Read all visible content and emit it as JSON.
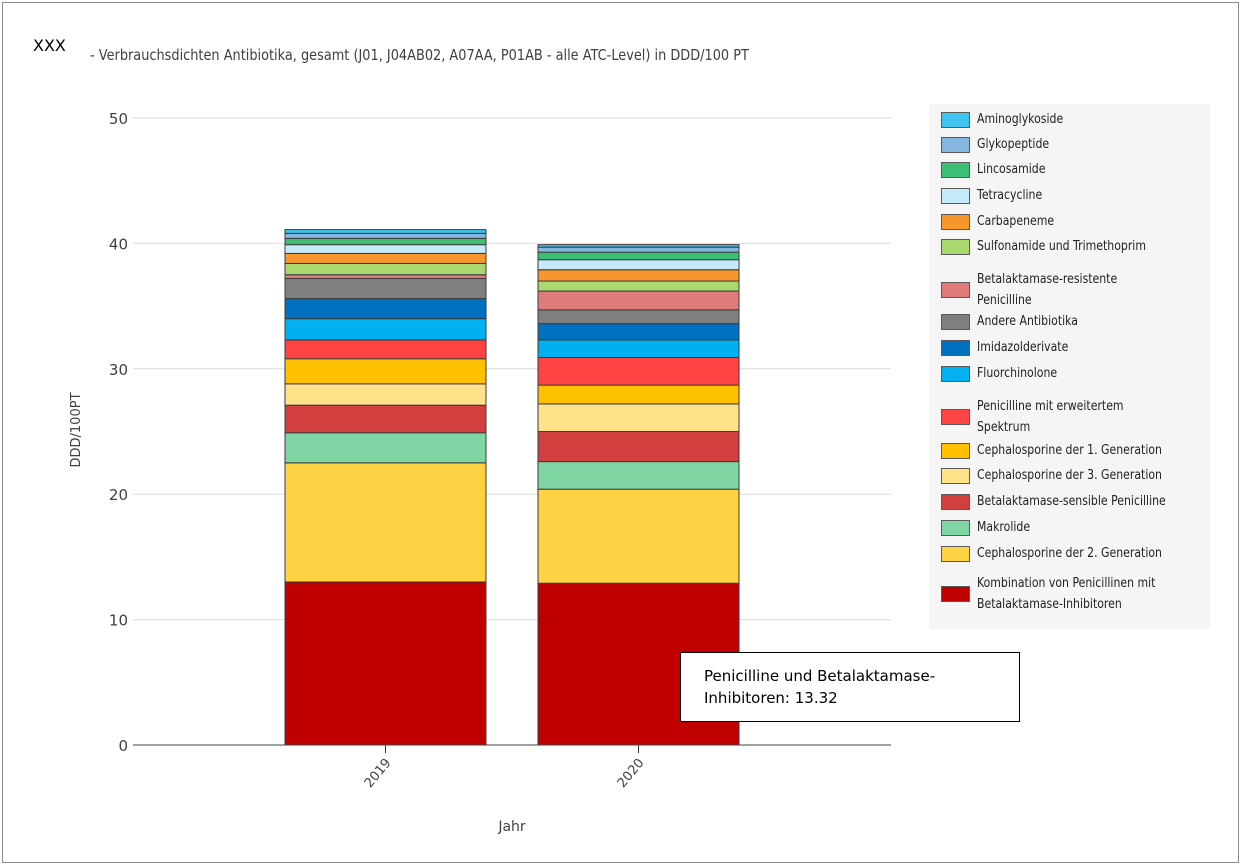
{
  "header": {
    "prefix": "XXX",
    "title": "- Verbrauchsdichten Antibiotika, gesamt (J01, J04AB02, A07AA, P01AB - alle ATC-Level) in DDD/100 PT"
  },
  "tooltip": {
    "text": "Penicilline und Betalaktamase-Inhibitoren: 13.32"
  },
  "chart_data": {
    "type": "bar",
    "stacked": true,
    "xlabel": "Jahr",
    "ylabel": "DDD/100PT",
    "ylim": [
      0,
      50
    ],
    "yticks": [
      "0",
      "10",
      "20",
      "30",
      "40",
      "50"
    ],
    "categories": [
      "2019",
      "2020"
    ],
    "grid": true,
    "legend_position": "right",
    "series": [
      {
        "name": "Kombination von Penicillinen mit Betalaktamase-Inhibitoren",
        "color": "#c00000",
        "values": [
          13.0,
          12.9
        ]
      },
      {
        "name": "Cephalosporine der 2. Generation",
        "color": "#ffd243",
        "values": [
          9.5,
          7.5
        ]
      },
      {
        "name": "Makrolide",
        "color": "#7fd6a2",
        "values": [
          2.4,
          2.2
        ]
      },
      {
        "name": "Betalaktamase-sensible Penicilline",
        "color": "#d13f3f",
        "values": [
          2.2,
          2.4
        ]
      },
      {
        "name": "Cephalosporine der 3. Generation",
        "color": "#ffe28a",
        "values": [
          1.7,
          2.2
        ]
      },
      {
        "name": "Cephalosporine der 1. Generation",
        "color": "#ffc000",
        "values": [
          2.0,
          1.5
        ]
      },
      {
        "name": "Penicilline mit erweitertem Spektrum",
        "color": "#ff4343",
        "values": [
          1.5,
          2.2
        ]
      },
      {
        "name": "Fluorchinolone",
        "color": "#00b0f0",
        "values": [
          1.7,
          1.4
        ]
      },
      {
        "name": "Imidazolderivate",
        "color": "#0070c0",
        "values": [
          1.6,
          1.3
        ]
      },
      {
        "name": "Andere Antibiotika",
        "color": "#7f7f7f",
        "values": [
          1.6,
          1.1
        ]
      },
      {
        "name": "Betalaktamase-resistente Penicilline",
        "color": "#e07b7b",
        "values": [
          0.3,
          1.5
        ]
      },
      {
        "name": "Sulfonamide und Trimethoprim",
        "color": "#a9d86e",
        "values": [
          0.9,
          0.8
        ]
      },
      {
        "name": "Carbapeneme",
        "color": "#f7962c",
        "values": [
          0.8,
          0.9
        ]
      },
      {
        "name": "Tetracycline",
        "color": "#c5eafa",
        "values": [
          0.7,
          0.8
        ]
      },
      {
        "name": "Lincosamide",
        "color": "#3cbf74",
        "values": [
          0.5,
          0.6
        ]
      },
      {
        "name": "Glykopeptide",
        "color": "#84b6e0",
        "values": [
          0.4,
          0.4
        ]
      },
      {
        "name": "Aminoglykoside",
        "color": "#3ec3ef",
        "values": [
          0.3,
          0.2
        ]
      }
    ]
  }
}
